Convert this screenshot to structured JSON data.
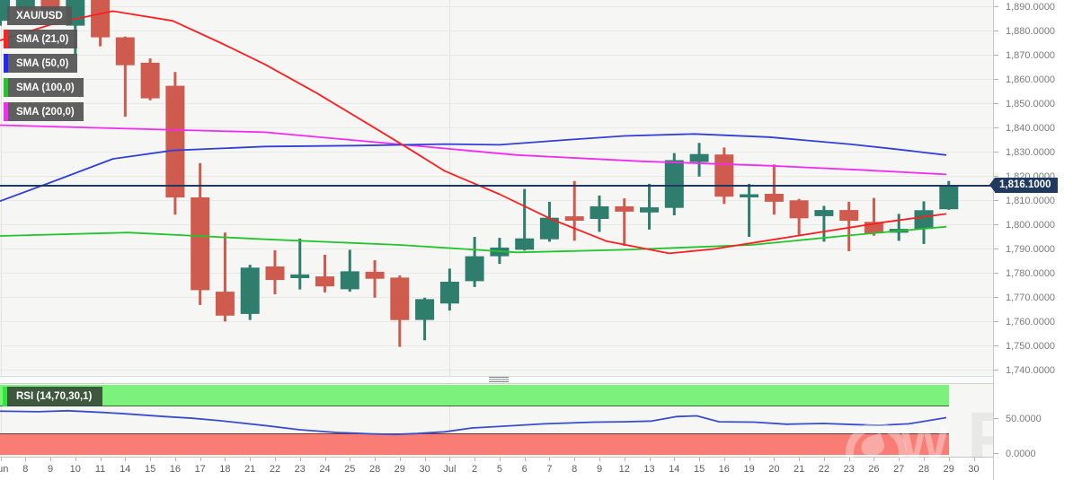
{
  "instrument": "XAU/USD",
  "legend": {
    "items": [
      {
        "label": "XAU/USD",
        "chip": null
      },
      {
        "label": "SMA (21,0)",
        "chip": "#ff2323"
      },
      {
        "label": "SMA (50,0)",
        "chip": "#2525ff"
      },
      {
        "label": "SMA (100,0)",
        "chip": "#22c52b"
      },
      {
        "label": "SMA (200,0)",
        "chip": "#f32bf3"
      }
    ]
  },
  "rsi_legend": {
    "label": "RSI (14,70,30,1)",
    "chip": "#2de83a"
  },
  "current_price": {
    "value": 1816.1,
    "label": "1,816.1000"
  },
  "watermark": {
    "letter": "W",
    "text": "FX"
  },
  "colors": {
    "candle_up": "#2f7d6c",
    "candle_down": "#cf5a4e",
    "sma21": "#fb1f1f",
    "sma50": "#3240d6",
    "sma100": "#22c52b",
    "sma200": "#f32bf3",
    "rsi_line": "#3a4ecb",
    "price_accent": "#20395e",
    "overbought_band": "#7cf17c",
    "oversold_band": "#f97d75",
    "panel_bg": "#f6f6f5",
    "grid": "#e8e8e7"
  },
  "chart_data": [
    {
      "type": "candlestick",
      "title": "XAU/USD",
      "y_ticks": [
        1890,
        1880,
        1870,
        1860,
        1850,
        1840,
        1830,
        1820,
        1810,
        1800,
        1790,
        1780,
        1770,
        1760,
        1750,
        1740
      ],
      "y_range": [
        1737,
        1893
      ],
      "current_price": 1816.1,
      "x_labels": [
        "Jun",
        "8",
        "9",
        "10",
        "11",
        "14",
        "15",
        "16",
        "17",
        "18",
        "21",
        "22",
        "23",
        "24",
        "25",
        "28",
        "29",
        "30",
        "Jul",
        "2",
        "5",
        "6",
        "7",
        "8",
        "9",
        "12",
        "13",
        "14",
        "15",
        "16",
        "19",
        "20",
        "21",
        "22",
        "23",
        "26",
        "27",
        "28",
        "29",
        "30"
      ],
      "candles": [
        {
          "d": "Jun 7",
          "o": 1884.0,
          "h": 1899.0,
          "l": 1882.0,
          "c": 1896.0
        },
        {
          "d": "Jun 8",
          "o": 1889.0,
          "h": 1901.0,
          "l": 1886.0,
          "c": 1897.0
        },
        {
          "d": "Jun 9",
          "o": 1897.0,
          "h": 1901.0,
          "l": 1884.0,
          "c": 1888.0
        },
        {
          "d": "Jun 10",
          "o": 1882.0,
          "h": 1901.0,
          "l": 1870.0,
          "c": 1896.0
        },
        {
          "d": "Jun 11",
          "o": 1896.0,
          "h": 1901.0,
          "l": 1873.5,
          "c": 1877.2
        },
        {
          "d": "Jun 14",
          "o": 1877.2,
          "h": 1877.5,
          "l": 1844.4,
          "c": 1865.7
        },
        {
          "d": "Jun 15",
          "o": 1866.7,
          "h": 1868.5,
          "l": 1851.2,
          "c": 1852.0
        },
        {
          "d": "Jun 16",
          "o": 1857.2,
          "h": 1862.9,
          "l": 1804.0,
          "c": 1811.1
        },
        {
          "d": "Jun 17",
          "o": 1811.1,
          "h": 1825.3,
          "l": 1766.7,
          "c": 1772.8
        },
        {
          "d": "Jun 18",
          "o": 1772.2,
          "h": 1796.6,
          "l": 1759.9,
          "c": 1762.3
        },
        {
          "d": "Jun 21",
          "o": 1763.0,
          "h": 1783.3,
          "l": 1760.5,
          "c": 1782.1
        },
        {
          "d": "Jun 22",
          "o": 1782.6,
          "h": 1789.3,
          "l": 1771.1,
          "c": 1777.0
        },
        {
          "d": "Jun 23",
          "o": 1777.8,
          "h": 1794.1,
          "l": 1773.1,
          "c": 1779.3
        },
        {
          "d": "Jun 24",
          "o": 1778.5,
          "h": 1787.4,
          "l": 1771.9,
          "c": 1774.4
        },
        {
          "d": "Jun 25",
          "o": 1773.2,
          "h": 1789.5,
          "l": 1772.2,
          "c": 1780.6
        },
        {
          "d": "Jun 28",
          "o": 1780.4,
          "h": 1785.2,
          "l": 1769.7,
          "c": 1777.5
        },
        {
          "d": "Jun 29",
          "o": 1778.0,
          "h": 1778.9,
          "l": 1749.4,
          "c": 1760.5
        },
        {
          "d": "Jun 30",
          "o": 1760.5,
          "h": 1769.7,
          "l": 1752.1,
          "c": 1769.1
        },
        {
          "d": "Jul 1",
          "o": 1767.3,
          "h": 1781.7,
          "l": 1764.4,
          "c": 1776.3
        },
        {
          "d": "Jul 2",
          "o": 1776.5,
          "h": 1794.8,
          "l": 1774.1,
          "c": 1786.8
        },
        {
          "d": "Jul 5",
          "o": 1786.8,
          "h": 1794.4,
          "l": 1783.7,
          "c": 1790.4
        },
        {
          "d": "Jul 6",
          "o": 1789.5,
          "h": 1814.6,
          "l": 1789.1,
          "c": 1794.2
        },
        {
          "d": "Jul 7",
          "o": 1793.8,
          "h": 1809.3,
          "l": 1792.8,
          "c": 1802.7
        },
        {
          "d": "Jul 8",
          "o": 1803.3,
          "h": 1817.9,
          "l": 1793.2,
          "c": 1801.5
        },
        {
          "d": "Jul 9",
          "o": 1802.2,
          "h": 1811.9,
          "l": 1796.9,
          "c": 1807.4
        },
        {
          "d": "Jul 12",
          "o": 1807.4,
          "h": 1810.7,
          "l": 1791.1,
          "c": 1805.2
        },
        {
          "d": "Jul 13",
          "o": 1804.9,
          "h": 1816.7,
          "l": 1797.8,
          "c": 1807.0
        },
        {
          "d": "Jul 14",
          "o": 1806.8,
          "h": 1829.4,
          "l": 1803.7,
          "c": 1826.5
        },
        {
          "d": "Jul 15",
          "o": 1825.7,
          "h": 1833.6,
          "l": 1819.7,
          "c": 1829.0
        },
        {
          "d": "Jul 16",
          "o": 1828.8,
          "h": 1831.7,
          "l": 1808.4,
          "c": 1811.4
        },
        {
          "d": "Jul 19",
          "o": 1811.1,
          "h": 1816.7,
          "l": 1794.8,
          "c": 1812.4
        },
        {
          "d": "Jul 20",
          "o": 1812.6,
          "h": 1824.7,
          "l": 1804.0,
          "c": 1809.3
        },
        {
          "d": "Jul 21",
          "o": 1809.9,
          "h": 1810.5,
          "l": 1795.3,
          "c": 1802.5
        },
        {
          "d": "Jul 22",
          "o": 1803.4,
          "h": 1807.6,
          "l": 1792.8,
          "c": 1805.9
        },
        {
          "d": "Jul 23",
          "o": 1805.9,
          "h": 1809.3,
          "l": 1788.9,
          "c": 1801.5
        },
        {
          "d": "Jul 26",
          "o": 1801.0,
          "h": 1810.9,
          "l": 1795.3,
          "c": 1796.3
        },
        {
          "d": "Jul 27",
          "o": 1796.5,
          "h": 1804.3,
          "l": 1793.2,
          "c": 1798.1
        },
        {
          "d": "Jul 28",
          "o": 1798.1,
          "h": 1809.5,
          "l": 1791.9,
          "c": 1805.8
        },
        {
          "d": "Jul 29",
          "o": 1806.2,
          "h": 1817.9,
          "l": 1806.0,
          "c": 1816.1
        }
      ],
      "overlays": [
        {
          "name": "SMA (200,0)",
          "color": "#f32bf3",
          "points": [
            [
              -0.3,
              1841
            ],
            [
              5.1,
              1839.5
            ],
            [
              10.6,
              1838
            ],
            [
              16.0,
              1833
            ],
            [
              20.7,
              1828.6
            ],
            [
              25.7,
              1826
            ],
            [
              30.8,
              1824.2
            ],
            [
              34.4,
              1822.5
            ],
            [
              37.9,
              1820.6
            ]
          ]
        },
        {
          "name": "SMA (100,0)",
          "color": "#22c52b",
          "points": [
            [
              -0.3,
              1795.1
            ],
            [
              5.1,
              1796.6
            ],
            [
              10.6,
              1793.8
            ],
            [
              16.0,
              1791.5
            ],
            [
              20.7,
              1788.4
            ],
            [
              25.0,
              1789.5
            ],
            [
              30.1,
              1791.5
            ],
            [
              34.1,
              1795.5
            ],
            [
              37.9,
              1799.0
            ]
          ]
        },
        {
          "name": "SMA (50,0)",
          "color": "#3240d6",
          "points": [
            [
              -0.3,
              1808.5
            ],
            [
              2.2,
              1818
            ],
            [
              4.5,
              1827
            ],
            [
              6.9,
              1830.5
            ],
            [
              10.6,
              1832.1
            ],
            [
              14.2,
              1832.5
            ],
            [
              17.8,
              1833.1
            ],
            [
              20.0,
              1832.8
            ],
            [
              22.9,
              1835
            ],
            [
              25.0,
              1836.5
            ],
            [
              27.8,
              1837.3
            ],
            [
              30.8,
              1836
            ],
            [
              34.1,
              1833
            ],
            [
              35.9,
              1831
            ],
            [
              37.9,
              1828.6
            ]
          ]
        },
        {
          "name": "SMA (21,0)",
          "color": "#fb1f1f",
          "points": [
            [
              -0.3,
              1875
            ],
            [
              2.2,
              1883
            ],
            [
              4.5,
              1888
            ],
            [
              6.9,
              1884
            ],
            [
              8.8,
              1875
            ],
            [
              10.6,
              1866
            ],
            [
              12.7,
              1854
            ],
            [
              14.8,
              1841
            ],
            [
              16.4,
              1831
            ],
            [
              17.8,
              1822
            ],
            [
              20.0,
              1812.4
            ],
            [
              22.1,
              1802
            ],
            [
              24.3,
              1793
            ],
            [
              26.8,
              1788
            ],
            [
              28.6,
              1789.8
            ],
            [
              30.8,
              1793.4
            ],
            [
              33.0,
              1797
            ],
            [
              35.5,
              1801
            ],
            [
              37.9,
              1804.3
            ]
          ]
        }
      ]
    },
    {
      "type": "line",
      "name": "RSI (14,70,30,1)",
      "color": "#3a4ecb",
      "y_ticks": [
        50,
        0
      ],
      "y_range": [
        0,
        100
      ],
      "bands": [
        {
          "from": 70,
          "to": 100,
          "color": "#7cf17c"
        },
        {
          "from": 0,
          "to": 30,
          "color": "#f97d75"
        }
      ],
      "points": [
        [
          -0.3,
          62
        ],
        [
          1.5,
          61
        ],
        [
          2.7,
          62.5
        ],
        [
          4.1,
          60
        ],
        [
          4.8,
          58.5
        ],
        [
          6.6,
          54
        ],
        [
          7.7,
          51.5
        ],
        [
          8.8,
          48
        ],
        [
          10.6,
          41
        ],
        [
          12.0,
          35
        ],
        [
          13.5,
          31
        ],
        [
          14.9,
          29
        ],
        [
          15.8,
          28.3
        ],
        [
          16.7,
          29.5
        ],
        [
          17.8,
          32
        ],
        [
          18.9,
          37.5
        ],
        [
          20.1,
          40
        ],
        [
          21.8,
          43.5
        ],
        [
          23.8,
          46
        ],
        [
          25.0,
          46.5
        ],
        [
          26.1,
          47.5
        ],
        [
          27.1,
          54
        ],
        [
          27.9,
          55
        ],
        [
          28.8,
          46.5
        ],
        [
          30.2,
          46
        ],
        [
          31.5,
          43
        ],
        [
          33.0,
          44
        ],
        [
          34.2,
          42.5
        ],
        [
          35.2,
          41.5
        ],
        [
          36.4,
          43.5
        ],
        [
          37.9,
          52.5
        ]
      ]
    }
  ]
}
